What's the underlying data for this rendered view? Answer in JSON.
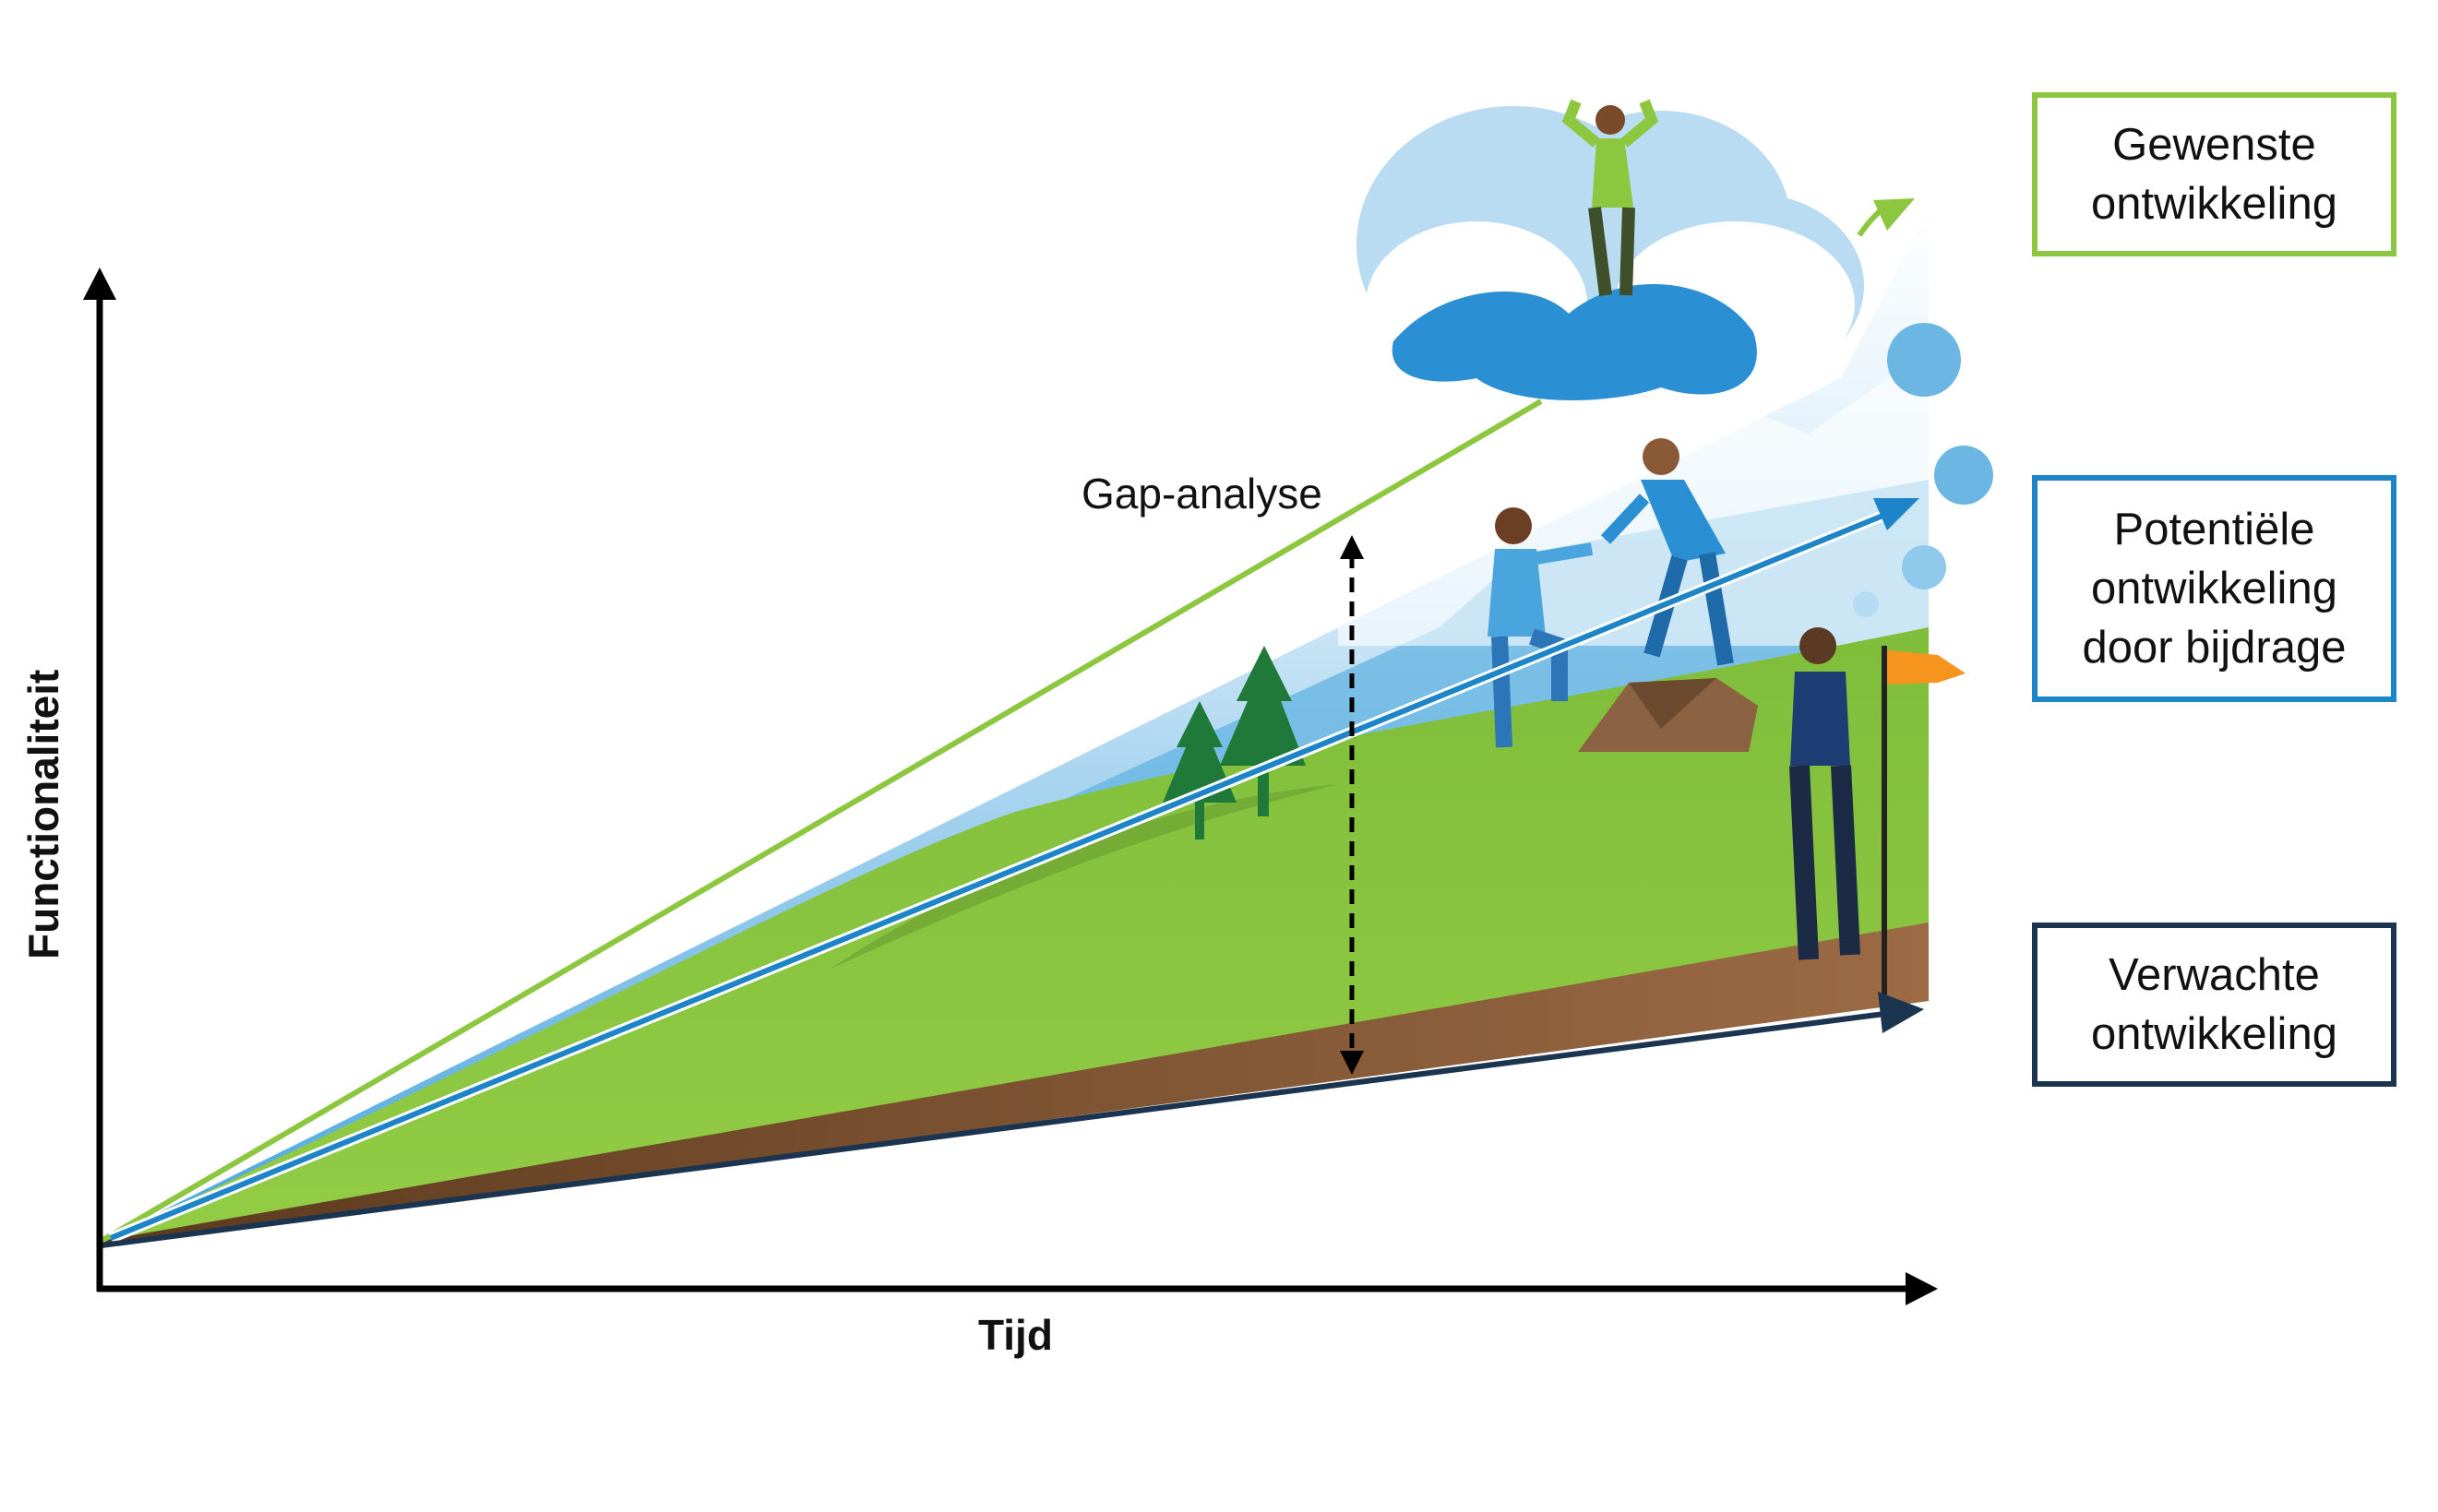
{
  "axes": {
    "y_label": "Functionaliteit",
    "x_label": "Tijd"
  },
  "annotation": {
    "gap_label": "Gap-analyse"
  },
  "legend": {
    "desired": {
      "line1": "Gewenste",
      "line2": "ontwikkeling",
      "color": "#8dc63f"
    },
    "potential": {
      "line1": "Potentiële",
      "line2": "ontwikkeling",
      "line3": "door bijdrage",
      "color": "#1d85c7"
    },
    "expected": {
      "line1": "Verwachte",
      "line2": "ontwikkeling",
      "color": "#1b3550"
    }
  },
  "colors": {
    "grass": "#8dc63f",
    "soil": "#8b6242",
    "sky": "#63b3e2",
    "axis": "#000000",
    "flag": "#f7941d"
  },
  "icons": [
    "person-celebrating-icon",
    "cloud-icon",
    "people-helping-icon",
    "person-with-flag-icon",
    "tree-icon",
    "rock-icon"
  ]
}
